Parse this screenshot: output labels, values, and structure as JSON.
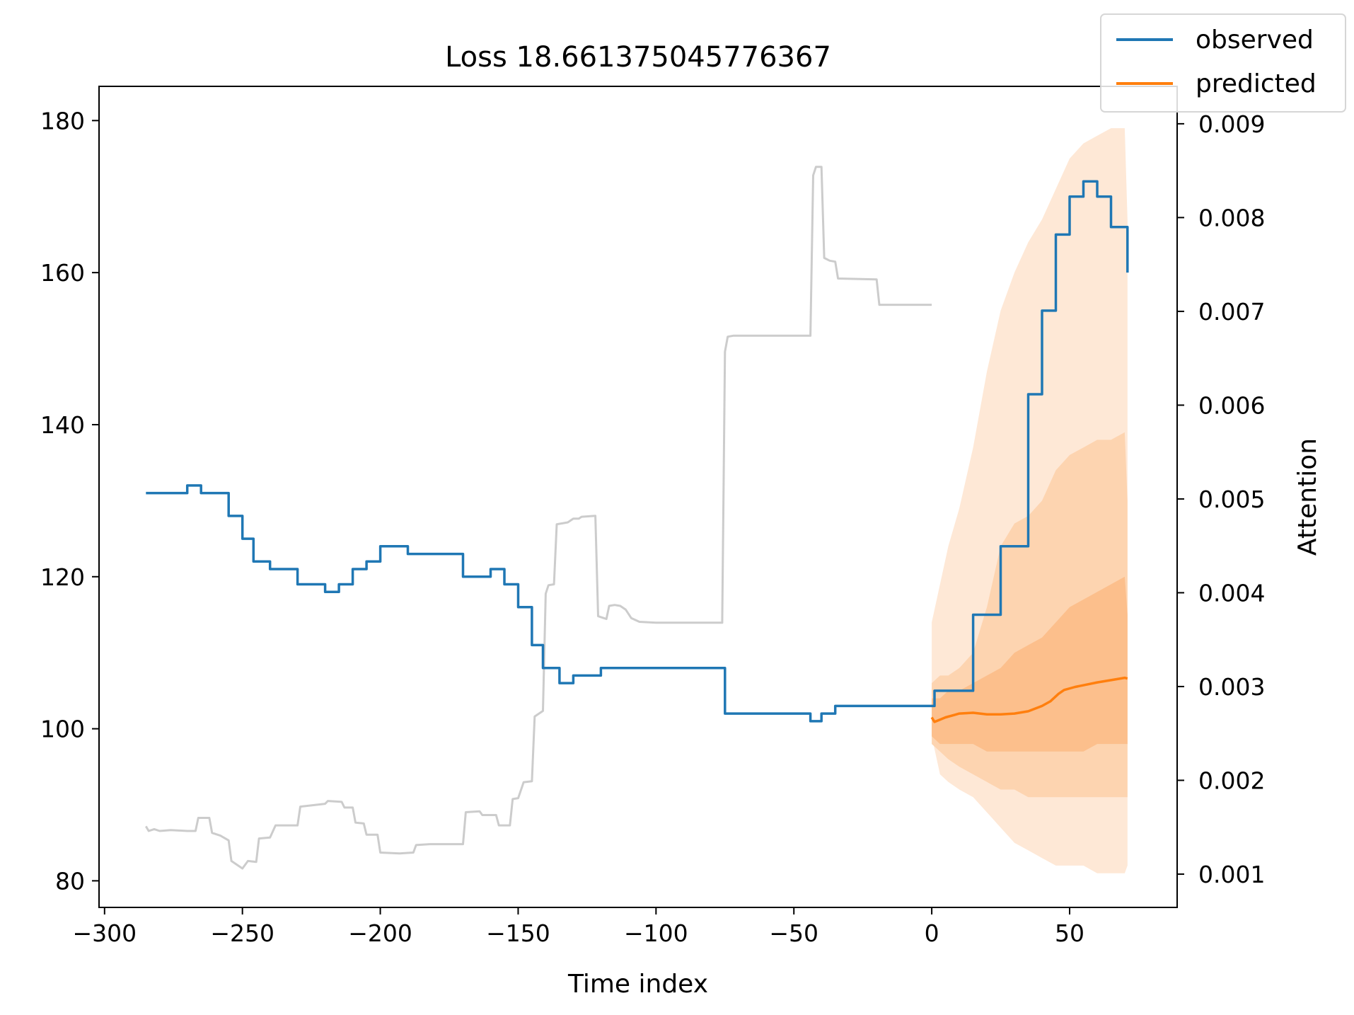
{
  "chart_data": {
    "type": "line",
    "title": "Loss 18.661375045776367",
    "xlabel": "Time index",
    "ylabel": "",
    "y2label": "Attention",
    "xlim": [
      -302,
      89
    ],
    "ylim": [
      76.5,
      184.5
    ],
    "y2lim": [
      0.000645,
      0.009399
    ],
    "xticks": [
      -300,
      -250,
      -200,
      -150,
      -100,
      -50,
      0,
      50
    ],
    "xtick_labels": [
      "−300",
      "−250",
      "−200",
      "−150",
      "−100",
      "−50",
      "0",
      "50"
    ],
    "yticks": [
      80,
      100,
      120,
      140,
      160,
      180
    ],
    "ytick_labels": [
      "80",
      "100",
      "120",
      "140",
      "160",
      "180"
    ],
    "y2ticks": [
      0.001,
      0.002,
      0.003,
      0.004,
      0.005,
      0.006,
      0.007,
      0.008,
      0.009
    ],
    "y2tick_labels": [
      "0.001",
      "0.002",
      "0.003",
      "0.004",
      "0.005",
      "0.006",
      "0.007",
      "0.008",
      "0.009"
    ],
    "legend": {
      "placement": "top-right",
      "entries": [
        "observed",
        "predicted"
      ]
    },
    "colors": {
      "observed": "#1f77b4",
      "predicted": "#ff7f0e",
      "attention": "#cccccc",
      "band_outer": "#fee8d6",
      "band_middle": "#fdd4b0",
      "band_inner": "#fcbf8c"
    },
    "series": [
      {
        "name": "observed",
        "axis": "left",
        "step": true,
        "points": [
          [
            -285,
            131
          ],
          [
            -270,
            132
          ],
          [
            -265,
            131
          ],
          [
            -255,
            128
          ],
          [
            -250,
            125
          ],
          [
            -246,
            122
          ],
          [
            -240,
            121
          ],
          [
            -230,
            119
          ],
          [
            -220,
            118
          ],
          [
            -215,
            119
          ],
          [
            -210,
            121
          ],
          [
            -205,
            122
          ],
          [
            -200,
            124
          ],
          [
            -190,
            123
          ],
          [
            -170,
            120
          ],
          [
            -160,
            121
          ],
          [
            -155,
            119
          ],
          [
            -150,
            116
          ],
          [
            -145,
            111
          ],
          [
            -141,
            108
          ],
          [
            -135,
            106
          ],
          [
            -130,
            107
          ],
          [
            -120,
            108
          ],
          [
            -75,
            102
          ],
          [
            -44,
            101
          ],
          [
            -40,
            102
          ],
          [
            -35,
            103
          ],
          [
            0,
            103
          ],
          [
            1,
            105
          ],
          [
            15,
            115
          ],
          [
            25,
            124
          ],
          [
            35,
            144
          ],
          [
            40,
            155
          ],
          [
            45,
            165
          ],
          [
            50,
            170
          ],
          [
            55,
            172
          ],
          [
            60,
            170
          ],
          [
            65,
            166
          ],
          [
            71,
            160
          ]
        ]
      },
      {
        "name": "predicted",
        "axis": "left",
        "points": [
          [
            0,
            101.5
          ],
          [
            1,
            100.9
          ],
          [
            3,
            101.2
          ],
          [
            5,
            101.5
          ],
          [
            8,
            101.8
          ],
          [
            10,
            102.0
          ],
          [
            15,
            102.1
          ],
          [
            20,
            101.9
          ],
          [
            25,
            101.9
          ],
          [
            30,
            102.0
          ],
          [
            35,
            102.3
          ],
          [
            40,
            103.0
          ],
          [
            43,
            103.6
          ],
          [
            46,
            104.6
          ],
          [
            48,
            105.1
          ],
          [
            52,
            105.5
          ],
          [
            56,
            105.8
          ],
          [
            60,
            106.1
          ],
          [
            65,
            106.4
          ],
          [
            70,
            106.7
          ],
          [
            71,
            106.6
          ]
        ]
      },
      {
        "name": "attention",
        "axis": "right",
        "points": [
          [
            -285,
            0.00151
          ],
          [
            -284,
            0.00146
          ],
          [
            -282,
            0.00148
          ],
          [
            -280,
            0.00146
          ],
          [
            -276,
            0.00147
          ],
          [
            -270,
            0.00146
          ],
          [
            -267,
            0.00146
          ],
          [
            -266,
            0.0016
          ],
          [
            -262,
            0.0016
          ],
          [
            -261,
            0.00144
          ],
          [
            -258,
            0.00141
          ],
          [
            -255,
            0.00136
          ],
          [
            -254,
            0.00114
          ],
          [
            -250,
            0.00106
          ],
          [
            -248,
            0.00114
          ],
          [
            -245,
            0.00113
          ],
          [
            -244,
            0.00138
          ],
          [
            -240,
            0.00139
          ],
          [
            -238,
            0.00152
          ],
          [
            -230,
            0.00152
          ],
          [
            -229,
            0.00172
          ],
          [
            -220,
            0.00175
          ],
          [
            -219,
            0.00178
          ],
          [
            -214,
            0.00177
          ],
          [
            -213,
            0.00171
          ],
          [
            -210,
            0.00171
          ],
          [
            -209,
            0.00155
          ],
          [
            -206,
            0.00154
          ],
          [
            -205,
            0.00142
          ],
          [
            -201,
            0.00142
          ],
          [
            -200,
            0.00123
          ],
          [
            -193,
            0.00122
          ],
          [
            -188,
            0.00123
          ],
          [
            -187,
            0.00131
          ],
          [
            -182,
            0.00132
          ],
          [
            -178,
            0.00132
          ],
          [
            -170,
            0.00132
          ],
          [
            -169,
            0.00166
          ],
          [
            -164,
            0.00167
          ],
          [
            -163,
            0.00163
          ],
          [
            -158,
            0.00163
          ],
          [
            -157,
            0.00152
          ],
          [
            -153,
            0.00152
          ],
          [
            -152,
            0.0018
          ],
          [
            -150,
            0.00181
          ],
          [
            -148,
            0.00198
          ],
          [
            -145,
            0.00199
          ],
          [
            -144,
            0.00268
          ],
          [
            -142,
            0.00272
          ],
          [
            -141,
            0.00274
          ],
          [
            -140,
            0.00399
          ],
          [
            -139,
            0.00408
          ],
          [
            -137,
            0.00409
          ],
          [
            -136,
            0.00473
          ],
          [
            -134,
            0.00474
          ],
          [
            -132,
            0.00475
          ],
          [
            -130,
            0.00479
          ],
          [
            -128,
            0.00479
          ],
          [
            -127,
            0.00481
          ],
          [
            -122,
            0.00482
          ],
          [
            -121,
            0.00375
          ],
          [
            -119,
            0.00373
          ],
          [
            -118,
            0.00372
          ],
          [
            -117,
            0.00386
          ],
          [
            -115,
            0.00387
          ],
          [
            -113,
            0.00386
          ],
          [
            -111,
            0.00382
          ],
          [
            -109,
            0.00373
          ],
          [
            -106,
            0.00369
          ],
          [
            -100,
            0.00368
          ],
          [
            -76,
            0.00368
          ],
          [
            -75,
            0.00657
          ],
          [
            -74,
            0.00673
          ],
          [
            -72,
            0.00674
          ],
          [
            -60,
            0.00674
          ],
          [
            -44,
            0.00674
          ],
          [
            -43,
            0.00845
          ],
          [
            -42,
            0.00854
          ],
          [
            -40,
            0.00854
          ],
          [
            -39,
            0.00757
          ],
          [
            -37,
            0.00754
          ],
          [
            -35,
            0.00753
          ],
          [
            -34,
            0.00735
          ],
          [
            -20,
            0.00734
          ],
          [
            -19,
            0.00707
          ],
          [
            -15,
            0.00707
          ],
          [
            0,
            0.00707
          ]
        ]
      }
    ],
    "quantile_bands": [
      {
        "level": "outer",
        "x": [
          0,
          3,
          6,
          10,
          15,
          20,
          25,
          30,
          35,
          40,
          45,
          50,
          55,
          60,
          65,
          70,
          71
        ],
        "upper": [
          114,
          119,
          124,
          129,
          137,
          147,
          155,
          160,
          164,
          167,
          171,
          175,
          177,
          178,
          179,
          179,
          167
        ],
        "lower": [
          99,
          94,
          93,
          92,
          91,
          89,
          87,
          85,
          84,
          83,
          82,
          82,
          82,
          81,
          81,
          81,
          82
        ]
      },
      {
        "level": "middle",
        "x": [
          0,
          3,
          6,
          10,
          15,
          20,
          25,
          30,
          35,
          40,
          45,
          50,
          55,
          60,
          65,
          70,
          71
        ],
        "upper": [
          106,
          107,
          107,
          108,
          110,
          116,
          124,
          127,
          128,
          130,
          134,
          136,
          137,
          138,
          138,
          139,
          130
        ],
        "lower": [
          98,
          97,
          96,
          95,
          94,
          93,
          92,
          92,
          91,
          91,
          91,
          91,
          91,
          91,
          91,
          91,
          91
        ]
      },
      {
        "level": "inner",
        "x": [
          0,
          3,
          6,
          10,
          15,
          20,
          25,
          30,
          35,
          40,
          45,
          50,
          55,
          60,
          65,
          70,
          71
        ],
        "upper": [
          104,
          104,
          105,
          105,
          106,
          107,
          108,
          110,
          111,
          112,
          114,
          116,
          117,
          118,
          119,
          120,
          115
        ],
        "lower": [
          99,
          98,
          98,
          98,
          98,
          97,
          97,
          97,
          97,
          97,
          97,
          97,
          97,
          98,
          98,
          98,
          98
        ]
      }
    ]
  }
}
